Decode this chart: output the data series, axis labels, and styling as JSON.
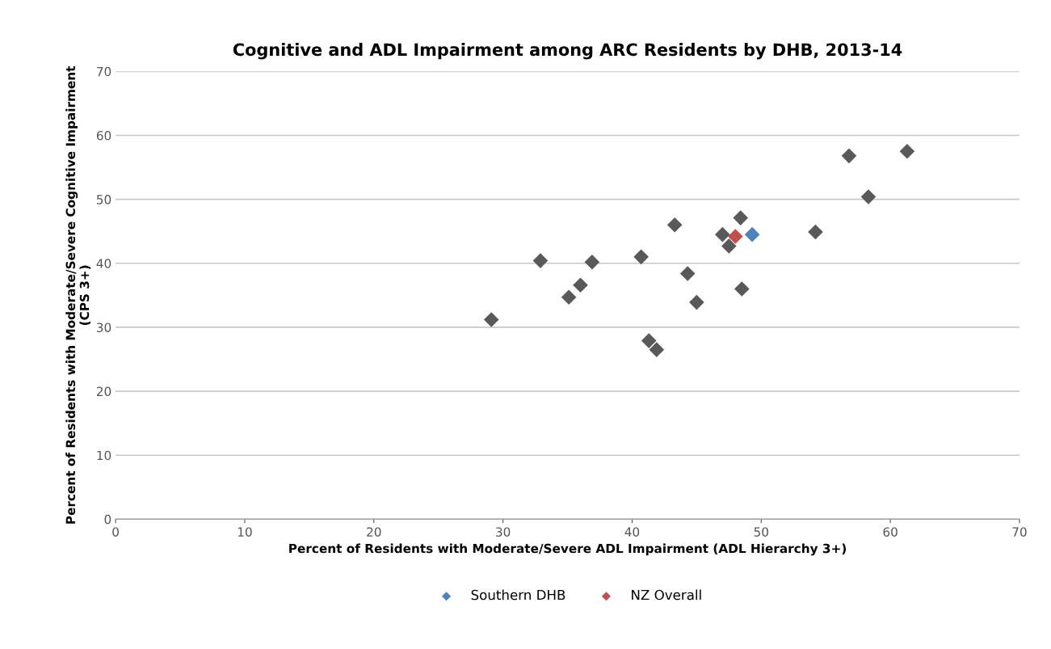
{
  "chart_data": {
    "type": "scatter",
    "title": "Cognitive and ADL Impairment among ARC Residents by DHB, 2013-14",
    "xlabel": "Percent of Residents with Moderate/Severe ADL Impairment (ADL Hierarchy 3+)",
    "ylabel": "Percent of Residents with Moderate/Severe Cognitive Impairment\n(CPS 3+)",
    "xlim": [
      0,
      70
    ],
    "ylim": [
      0,
      70
    ],
    "xticks": [
      0,
      10,
      20,
      30,
      40,
      50,
      60,
      70
    ],
    "yticks": [
      0,
      10,
      20,
      30,
      40,
      50,
      60,
      70
    ],
    "grid": "y",
    "legend": "bottom",
    "marker": "diamond",
    "series": [
      {
        "color": "#595959",
        "x": [
          29.1,
          32.9,
          35.1,
          36.0,
          36.9,
          40.7,
          41.3,
          41.9,
          43.3,
          44.3,
          45.0,
          47.0,
          47.5,
          48.4,
          48.5,
          54.2,
          56.8,
          58.3,
          61.3
        ],
        "values": [
          31.2,
          40.4,
          34.7,
          36.6,
          40.2,
          41.0,
          27.9,
          26.5,
          46.0,
          38.4,
          33.9,
          44.5,
          42.7,
          47.1,
          36.0,
          44.9,
          56.8,
          50.4,
          57.5
        ]
      },
      {
        "name": "Southern DHB",
        "color": "#4f81bd",
        "x": [
          49.3
        ],
        "values": [
          44.5
        ]
      },
      {
        "name": "NZ Overall",
        "color": "#c0504d",
        "x": [
          48.0
        ],
        "values": [
          44.2
        ]
      }
    ]
  }
}
